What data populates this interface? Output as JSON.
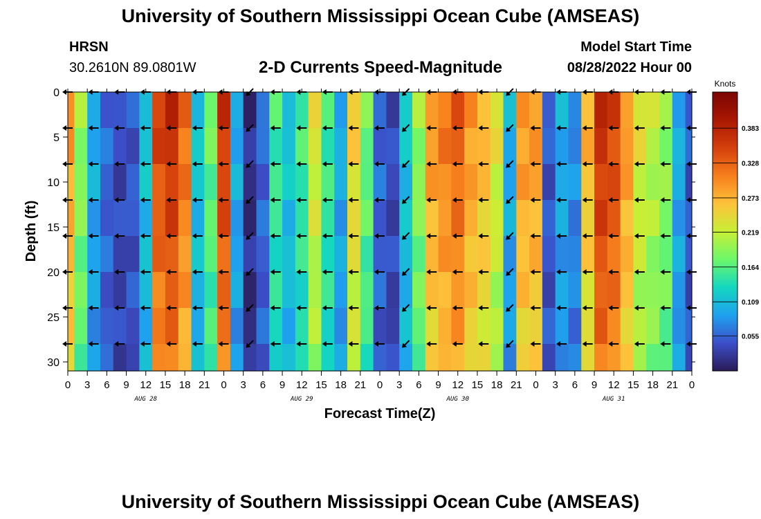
{
  "header": {
    "title": "University of Southern Mississippi Ocean Cube (AMSEAS)",
    "station": "HRSN",
    "coords": "30.2610N  89.0801W",
    "subtitle": "2-D Currents Speed-Magnitude",
    "model_start_label": "Model Start Time",
    "model_start_value": "08/28/2022 Hour 00"
  },
  "footer": {
    "title": "University of Southern Mississippi Ocean Cube (AMSEAS)"
  },
  "chart_data": {
    "type": "heatmap",
    "title": "2-D Currents Speed-Magnitude",
    "xlabel": "Forecast Time(Z)",
    "ylabel": "Depth (ft)",
    "x_range_hours": [
      0,
      96
    ],
    "ylim": [
      0,
      31
    ],
    "x_tick_labels": [
      "0",
      "3",
      "6",
      "9",
      "12",
      "15",
      "18",
      "21",
      "0",
      "3",
      "6",
      "9",
      "12",
      "15",
      "18",
      "21",
      "0",
      "3",
      "6",
      "9",
      "12",
      "15",
      "18",
      "21",
      "0",
      "3",
      "6",
      "9",
      "12",
      "15",
      "18",
      "21",
      "0"
    ],
    "y_ticks": [
      0,
      5,
      10,
      15,
      20,
      25,
      30
    ],
    "day_labels": [
      "AUG 28",
      "AUG 29",
      "AUG 30",
      "AUG 31"
    ],
    "colorbar": {
      "label": "Knots",
      "range": [
        0.0,
        0.44
      ],
      "ticks": [
        0.055,
        0.109,
        0.164,
        0.219,
        0.273,
        0.328,
        0.383
      ],
      "tick_labels": [
        "0.055",
        "0.109",
        "0.164",
        "0.219",
        "0.273",
        "0.328",
        "0.383"
      ]
    },
    "time_hours": [
      0,
      2,
      4,
      6,
      8,
      10,
      12,
      14,
      16,
      18,
      20,
      22,
      24,
      26,
      28,
      30,
      32,
      34,
      36,
      38,
      40,
      42,
      44,
      46,
      48,
      50,
      52,
      54,
      56,
      58,
      60,
      62,
      64,
      66,
      68,
      70,
      72,
      74,
      76,
      78,
      80,
      82,
      84,
      86,
      88,
      90,
      92,
      94,
      96
    ],
    "depth_ft": [
      0,
      4,
      8,
      12,
      16,
      20,
      24,
      28,
      31
    ],
    "speed_profile_knots": [
      0.3,
      0.2,
      0.1,
      0.06,
      0.04,
      0.05,
      0.12,
      0.36,
      0.38,
      0.33,
      0.12,
      0.18,
      0.37,
      0.1,
      0.02,
      0.06,
      0.16,
      0.12,
      0.16,
      0.24,
      0.16,
      0.1,
      0.26,
      0.18,
      0.06,
      0.04,
      0.12,
      0.2,
      0.3,
      0.32,
      0.34,
      0.3,
      0.28,
      0.24,
      0.1,
      0.3,
      0.3,
      0.05,
      0.1,
      0.08,
      0.28,
      0.38,
      0.36,
      0.3,
      0.24,
      0.22,
      0.2,
      0.1,
      0.05
    ],
    "arrow_directions": [
      "W",
      "W",
      "W",
      "W",
      "W",
      "SW",
      "W",
      "W",
      "W",
      "NE",
      "W",
      "W",
      "W",
      "W",
      "SW",
      "W",
      "W",
      "W",
      "W",
      "W",
      "W",
      "NW",
      "W",
      "W",
      "W",
      "W",
      "SW",
      "W",
      "W",
      "W",
      "W",
      "W",
      "W",
      "W",
      "SW",
      "W",
      "W",
      "W",
      "W",
      "W",
      "W",
      "W",
      "W",
      "W",
      "W",
      "W",
      "W",
      "W",
      "W"
    ]
  }
}
